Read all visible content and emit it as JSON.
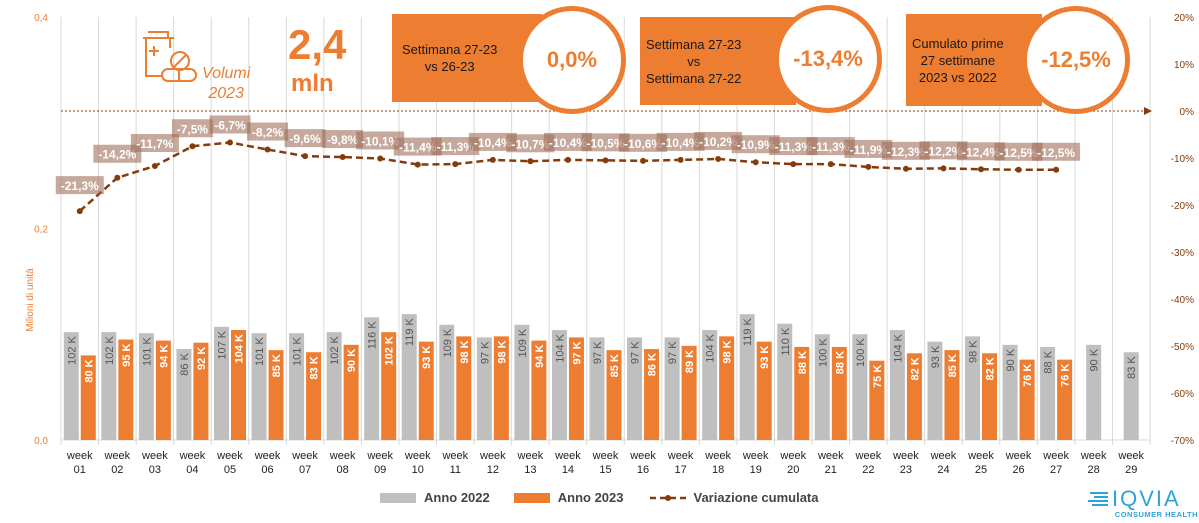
{
  "header": {
    "icon": "medicine-bottle-pills-icon",
    "volumi_label": "Volumi",
    "volumi_year": "2023",
    "total_value": "2,4",
    "total_unit": "mln"
  },
  "kpis": [
    {
      "label_lines": [
        "Settimana 27-23",
        "vs 26-23"
      ],
      "value": "0,0%"
    },
    {
      "label_lines": [
        "Settimana 27-23",
        "vs",
        "Settimana 27-22"
      ],
      "value": "-13,4%"
    },
    {
      "label_lines": [
        "Cumulato prime",
        "27 settimane",
        "2023 vs 2022"
      ],
      "value": "-12,5%"
    }
  ],
  "legend": {
    "items": [
      {
        "label": "Anno 2022",
        "color": "#BFBFBF",
        "type": "bar"
      },
      {
        "label": "Anno 2023",
        "color": "#ED7D31",
        "type": "bar"
      },
      {
        "label": "Variazione cumulata",
        "color": "#843C0C",
        "type": "dashed-line"
      }
    ]
  },
  "logo": {
    "brand": "IQVIA",
    "sub": "CONSUMER HEALTH",
    "color": "#2EA3DB"
  },
  "chart_data": {
    "type": "bar",
    "title": "",
    "ylabel": "Milioni di unità",
    "y2label": "",
    "ylim": [
      0,
      0.4
    ],
    "y_ticks": [
      "0,0",
      "0,2",
      "0,4"
    ],
    "y2lim": [
      -70,
      20
    ],
    "y2_ticks": [
      "20%",
      "10%",
      "0%",
      "-10%",
      "-20%",
      "-30%",
      "-40%",
      "-50%",
      "-60%",
      "-70%"
    ],
    "grid": "vertical",
    "legend_position": "bottom",
    "categories": [
      [
        "week",
        "01"
      ],
      [
        "week",
        "02"
      ],
      [
        "week",
        "03"
      ],
      [
        "week",
        "04"
      ],
      [
        "week",
        "05"
      ],
      [
        "week",
        "06"
      ],
      [
        "week",
        "07"
      ],
      [
        "week",
        "08"
      ],
      [
        "week",
        "09"
      ],
      [
        "week",
        "10"
      ],
      [
        "week",
        "11"
      ],
      [
        "week",
        "12"
      ],
      [
        "week",
        "13"
      ],
      [
        "week",
        "14"
      ],
      [
        "week",
        "15"
      ],
      [
        "week",
        "16"
      ],
      [
        "week",
        "17"
      ],
      [
        "week",
        "18"
      ],
      [
        "week",
        "19"
      ],
      [
        "week",
        "20"
      ],
      [
        "week",
        "21"
      ],
      [
        "week",
        "22"
      ],
      [
        "week",
        "23"
      ],
      [
        "week",
        "24"
      ],
      [
        "week",
        "25"
      ],
      [
        "week",
        "26"
      ],
      [
        "week",
        "27"
      ],
      [
        "week",
        "28"
      ],
      [
        "week",
        "29"
      ]
    ],
    "series": [
      {
        "name": "Anno 2022",
        "type": "bar",
        "axis": "left",
        "unit": "K",
        "color": "#BFBFBF",
        "values": [
          102,
          102,
          101,
          86,
          107,
          101,
          101,
          102,
          116,
          119,
          109,
          97,
          109,
          104,
          97,
          97,
          97,
          104,
          119,
          110,
          100,
          100,
          104,
          93,
          98,
          90,
          88,
          90,
          83
        ]
      },
      {
        "name": "Anno 2023",
        "type": "bar",
        "axis": "left",
        "unit": "K",
        "color": "#ED7D31",
        "values": [
          80,
          95,
          94,
          92,
          104,
          85,
          83,
          90,
          102,
          93,
          98,
          98,
          94,
          97,
          85,
          86,
          89,
          98,
          93,
          88,
          88,
          75,
          82,
          85,
          82,
          76,
          76
        ]
      },
      {
        "name": "Variazione cumulata",
        "type": "line",
        "axis": "right",
        "unit": "%",
        "color": "#843C0C",
        "values": [
          -21.3,
          -14.2,
          -11.7,
          -7.5,
          -6.7,
          -8.2,
          -9.6,
          -9.8,
          -10.1,
          -11.4,
          -11.3,
          -10.4,
          -10.7,
          -10.4,
          -10.5,
          -10.6,
          -10.4,
          -10.2,
          -10.9,
          -11.3,
          -11.3,
          -11.9,
          -12.3,
          -12.2,
          -12.4,
          -12.5,
          -12.5
        ],
        "labels": [
          "-21,3%",
          "-14,2%",
          "-11,7%",
          "-7,5%",
          "-6,7%",
          "-8,2%",
          "-9,6%",
          "-9,8%",
          "-10,1%",
          "-11,4%",
          "-11,3%",
          "-10,4%",
          "-10,7%",
          "-10,4%",
          "-10,5%",
          "-10,6%",
          "-10,4%",
          "-10,2%",
          "-10,9%",
          "-11,3%",
          "-11,3%",
          "-11,9%",
          "-12,3%",
          "-12,2%",
          "-12,4%",
          "-12,5%",
          "-12,5%"
        ]
      }
    ],
    "reference_line": {
      "axis": "right",
      "value": 0,
      "style": "dotted-arrow",
      "color": "#843C0C"
    }
  }
}
